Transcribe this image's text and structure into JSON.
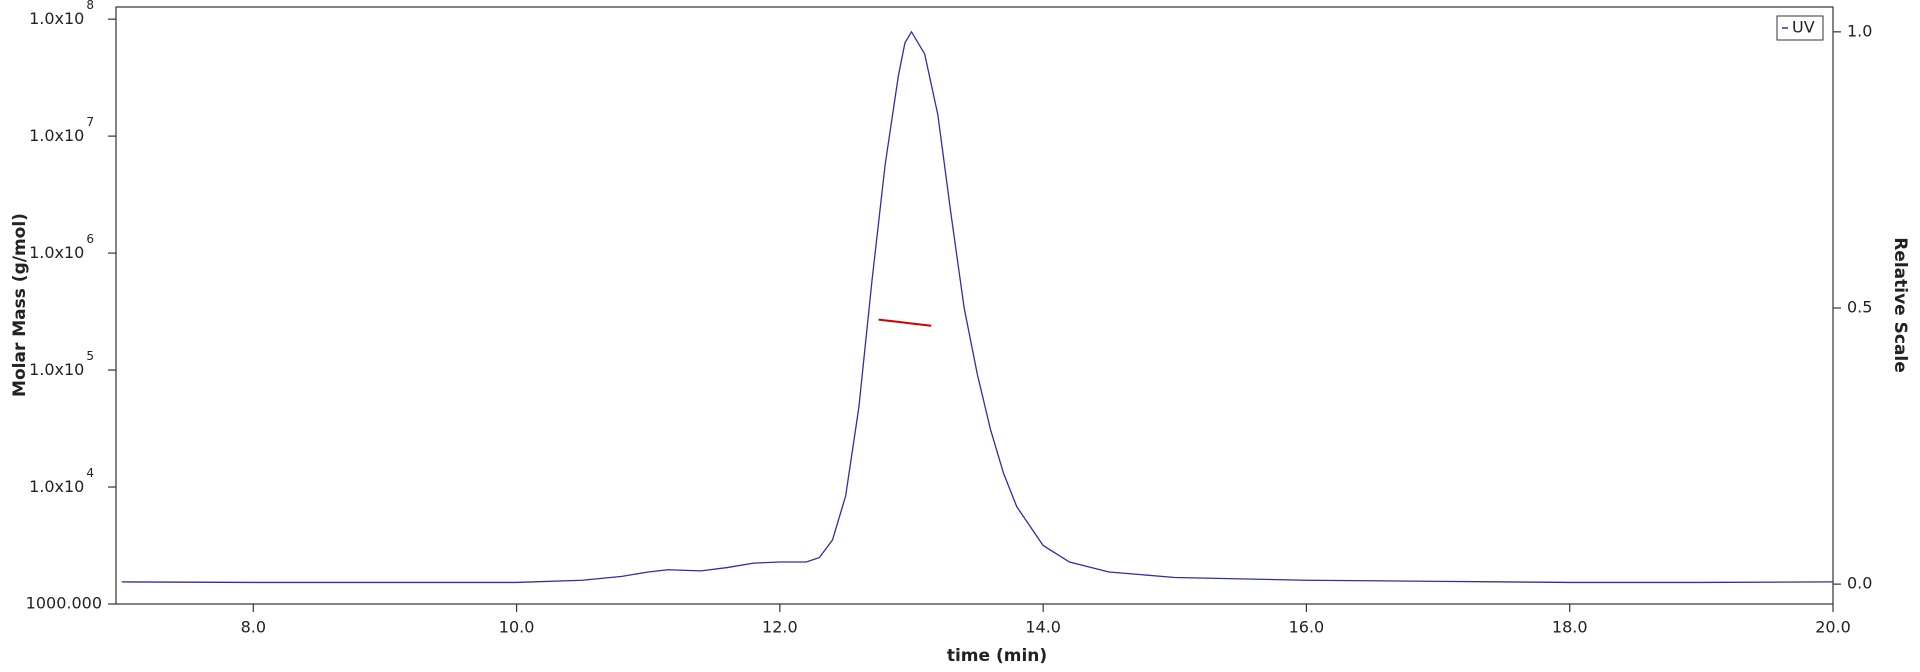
{
  "chart_data": {
    "type": "line",
    "x_label": "time (min)",
    "y_label": "Molar Mass (g/mol)",
    "y2_label": "Relative Scale",
    "xlim": [
      6.957,
      20.0
    ],
    "xticks": [
      {
        "value": 8,
        "label": "8.0"
      },
      {
        "value": 10,
        "label": "10.0"
      },
      {
        "value": 12,
        "label": "12.0"
      },
      {
        "value": 14,
        "label": "14.0"
      },
      {
        "value": 16,
        "label": "16.0"
      },
      {
        "value": 18,
        "label": "18.0"
      },
      {
        "value": 20,
        "label": "20.0"
      }
    ],
    "log_y": true,
    "ylim": [
      1000,
      127000000
    ],
    "yticks": [
      {
        "value": 1000,
        "label": "1000.000"
      },
      {
        "value": 10000,
        "label": "1.0x10",
        "exponent": "4"
      },
      {
        "value": 100000,
        "label": "1.0x10",
        "exponent": "5"
      },
      {
        "value": 1000000,
        "label": "1.0x10",
        "exponent": "6"
      },
      {
        "value": 10000000,
        "label": "1.0x10",
        "exponent": "7"
      },
      {
        "value": 100000000,
        "label": "1.0x10",
        "exponent": "8"
      }
    ],
    "y2lim": [
      -0.036,
      1.045
    ],
    "y2ticks": [
      {
        "value": 0,
        "label": "0.0"
      },
      {
        "value": 0.5,
        "label": "0.5"
      },
      {
        "value": 1,
        "label": "1.0"
      }
    ],
    "legend": "top-right",
    "series": [
      {
        "name": "UV",
        "color": "#2e2ea8",
        "axis": "y2",
        "x": [
          7.0,
          8.0,
          9.0,
          10.0,
          10.5,
          10.8,
          11.0,
          11.15,
          11.4,
          11.6,
          11.8,
          12.0,
          12.2,
          12.3,
          12.4,
          12.5,
          12.6,
          12.7,
          12.8,
          12.9,
          12.95,
          13.0,
          13.1,
          13.2,
          13.3,
          13.4,
          13.5,
          13.6,
          13.7,
          13.8,
          14.0,
          14.2,
          14.5,
          15.0,
          16.0,
          17.0,
          18.0,
          19.0,
          20.0
        ],
        "values": [
          0.004,
          0.003,
          0.003,
          0.003,
          0.007,
          0.014,
          0.022,
          0.026,
          0.024,
          0.03,
          0.038,
          0.04,
          0.04,
          0.048,
          0.08,
          0.16,
          0.32,
          0.55,
          0.76,
          0.92,
          0.98,
          1.0,
          0.96,
          0.85,
          0.67,
          0.5,
          0.38,
          0.28,
          0.2,
          0.14,
          0.07,
          0.04,
          0.022,
          0.012,
          0.007,
          0.005,
          0.003,
          0.003,
          0.004
        ]
      },
      {
        "color": "#d40000",
        "x": [
          12.75,
          12.9,
          13.0,
          13.15
        ],
        "values": [
          270000,
          258000,
          250000,
          239000
        ]
      }
    ]
  }
}
